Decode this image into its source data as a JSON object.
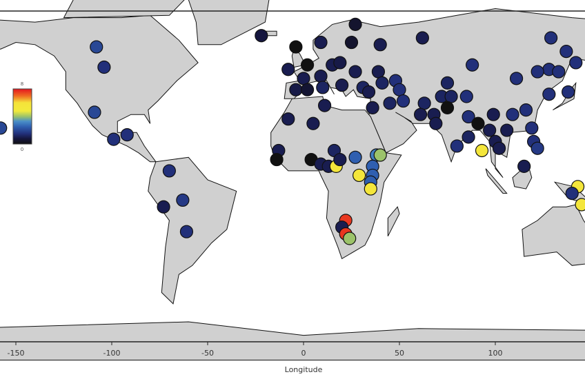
{
  "chart_data": {
    "type": "scatter",
    "basemap": "world land outlines",
    "xlabel": "Longitude",
    "ylabel": "",
    "xlim": [
      -158,
      147
    ],
    "ylim": [
      -72,
      75
    ],
    "xticks": [
      -150,
      -100,
      -50,
      0,
      50,
      100
    ],
    "xtick_labels": [
      "-150",
      "-100",
      "-50",
      "0",
      "50",
      "100"
    ],
    "colorbar": {
      "min": 0,
      "max": 8,
      "min_label": "0",
      "max_label": "8",
      "placement": "left",
      "stops": [
        {
          "v": 0,
          "color": "#111111"
        },
        {
          "v": 0.8,
          "color": "#15163f"
        },
        {
          "v": 1.5,
          "color": "#22307a"
        },
        {
          "v": 2.5,
          "color": "#2f5fb0"
        },
        {
          "v": 3.3,
          "color": "#4a8fc8"
        },
        {
          "v": 4.0,
          "color": "#9cc36a"
        },
        {
          "v": 4.8,
          "color": "#f2ea3c"
        },
        {
          "v": 6.0,
          "color": "#f5e33a"
        },
        {
          "v": 7.0,
          "color": "#ef6a22"
        },
        {
          "v": 8,
          "color": "#e3151f"
        }
      ]
    },
    "land_color": "#d0d0d0",
    "points": [
      {
        "lon": -108,
        "lat": 59,
        "v": 2
      },
      {
        "lon": -104,
        "lat": 50,
        "v": 1.5
      },
      {
        "lon": -109,
        "lat": 30,
        "v": 2
      },
      {
        "lon": -99,
        "lat": 18,
        "v": 1.5
      },
      {
        "lon": -92,
        "lat": 20,
        "v": 1.5
      },
      {
        "lon": -158,
        "lat": 23,
        "v": 2
      },
      {
        "lon": -70,
        "lat": 4,
        "v": 1.5
      },
      {
        "lon": -63,
        "lat": -9,
        "v": 1.7
      },
      {
        "lon": -73,
        "lat": -12,
        "v": 1
      },
      {
        "lon": -61,
        "lat": -23,
        "v": 1.5
      },
      {
        "lon": -22,
        "lat": 64,
        "v": 0.8
      },
      {
        "lon": -4,
        "lat": 59,
        "v": 0
      },
      {
        "lon": -8,
        "lat": 49,
        "v": 1
      },
      {
        "lon": 2,
        "lat": 51,
        "v": 0
      },
      {
        "lon": 0,
        "lat": 45,
        "v": 1
      },
      {
        "lon": 9,
        "lat": 46,
        "v": 1
      },
      {
        "lon": 15,
        "lat": 51,
        "v": 1
      },
      {
        "lon": 19,
        "lat": 52,
        "v": 0.9
      },
      {
        "lon": 10,
        "lat": 41,
        "v": 1.2
      },
      {
        "lon": -4,
        "lat": 40,
        "v": 0.9
      },
      {
        "lon": 2,
        "lat": 40,
        "v": 0.6
      },
      {
        "lon": 27,
        "lat": 69,
        "v": 0.5
      },
      {
        "lon": 25,
        "lat": 61,
        "v": 0.5
      },
      {
        "lon": 9,
        "lat": 61,
        "v": 1
      },
      {
        "lon": 20,
        "lat": 42,
        "v": 1
      },
      {
        "lon": 27,
        "lat": 48,
        "v": 1
      },
      {
        "lon": 31,
        "lat": 41,
        "v": 1.2
      },
      {
        "lon": 39,
        "lat": 48,
        "v": 1
      },
      {
        "lon": 40,
        "lat": 60,
        "v": 1
      },
      {
        "lon": 34,
        "lat": 39,
        "v": 1
      },
      {
        "lon": 48,
        "lat": 44,
        "v": 1.5
      },
      {
        "lon": 50,
        "lat": 40,
        "v": 1.5
      },
      {
        "lon": 41,
        "lat": 43,
        "v": 1.2
      },
      {
        "lon": 45,
        "lat": 34,
        "v": 1.2
      },
      {
        "lon": 36,
        "lat": 32,
        "v": 1
      },
      {
        "lon": 52,
        "lat": 35,
        "v": 1.5
      },
      {
        "lon": 62,
        "lat": 63,
        "v": 1
      },
      {
        "lon": 88,
        "lat": 51,
        "v": 1.5
      },
      {
        "lon": 129,
        "lat": 63,
        "v": 1.5
      },
      {
        "lon": 137,
        "lat": 57,
        "v": 1.5
      },
      {
        "lon": 142,
        "lat": 52,
        "v": 1.5
      },
      {
        "lon": 128,
        "lat": 49,
        "v": 1.5
      },
      {
        "lon": 122,
        "lat": 48,
        "v": 1.5
      },
      {
        "lon": 133,
        "lat": 48,
        "v": 1.5
      },
      {
        "lon": 111,
        "lat": 45,
        "v": 1.5
      },
      {
        "lon": 75,
        "lat": 43,
        "v": 1.2
      },
      {
        "lon": 72,
        "lat": 37,
        "v": 1.2
      },
      {
        "lon": 77,
        "lat": 37,
        "v": 1.2
      },
      {
        "lon": 85,
        "lat": 37,
        "v": 1.5
      },
      {
        "lon": 63,
        "lat": 34,
        "v": 1.2
      },
      {
        "lon": 61,
        "lat": 29,
        "v": 1
      },
      {
        "lon": 68,
        "lat": 29,
        "v": 1
      },
      {
        "lon": 69,
        "lat": 25,
        "v": 1
      },
      {
        "lon": 75,
        "lat": 32,
        "v": 0
      },
      {
        "lon": 86,
        "lat": 28,
        "v": 1.5
      },
      {
        "lon": 91,
        "lat": 25,
        "v": 0
      },
      {
        "lon": 99,
        "lat": 29,
        "v": 1
      },
      {
        "lon": 109,
        "lat": 29,
        "v": 1.5
      },
      {
        "lon": 116,
        "lat": 31,
        "v": 1.5
      },
      {
        "lon": 128,
        "lat": 38,
        "v": 1.5
      },
      {
        "lon": 138,
        "lat": 39,
        "v": 1.5
      },
      {
        "lon": 119,
        "lat": 23,
        "v": 1.5
      },
      {
        "lon": 120,
        "lat": 17,
        "v": 1.5
      },
      {
        "lon": 106,
        "lat": 22,
        "v": 1
      },
      {
        "lon": 97,
        "lat": 22,
        "v": 1
      },
      {
        "lon": 100,
        "lat": 17,
        "v": 1
      },
      {
        "lon": 80,
        "lat": 15,
        "v": 1.5
      },
      {
        "lon": 86,
        "lat": 19,
        "v": 1.2
      },
      {
        "lon": 93,
        "lat": 13,
        "v": 5.5
      },
      {
        "lon": 102,
        "lat": 14,
        "v": 1
      },
      {
        "lon": 115,
        "lat": 6,
        "v": 1
      },
      {
        "lon": 122,
        "lat": 14,
        "v": 1.7
      },
      {
        "lon": 143,
        "lat": -3,
        "v": 5.5
      },
      {
        "lon": 145,
        "lat": -11,
        "v": 5.5
      },
      {
        "lon": 140,
        "lat": -6,
        "v": 1.5
      },
      {
        "lon": -8,
        "lat": 27,
        "v": 1
      },
      {
        "lon": 5,
        "lat": 25,
        "v": 1
      },
      {
        "lon": 11,
        "lat": 33,
        "v": 1
      },
      {
        "lon": -13,
        "lat": 13,
        "v": 1
      },
      {
        "lon": -14,
        "lat": 9,
        "v": 0
      },
      {
        "lon": 4,
        "lat": 9,
        "v": 0
      },
      {
        "lon": 9,
        "lat": 7,
        "v": 1
      },
      {
        "lon": 13,
        "lat": 6,
        "v": 1
      },
      {
        "lon": 16,
        "lat": 13,
        "v": 1.2
      },
      {
        "lon": 17,
        "lat": 6,
        "v": 5.5
      },
      {
        "lon": 19,
        "lat": 9,
        "v": 1
      },
      {
        "lon": 27,
        "lat": 10,
        "v": 2.5
      },
      {
        "lon": 38,
        "lat": 11,
        "v": 3
      },
      {
        "lon": 40,
        "lat": 11,
        "v": 4
      },
      {
        "lon": 36,
        "lat": 6,
        "v": 2.5
      },
      {
        "lon": 36,
        "lat": 2,
        "v": 2.5
      },
      {
        "lon": 29,
        "lat": 2,
        "v": 5.5
      },
      {
        "lon": 35,
        "lat": -1,
        "v": 2.5
      },
      {
        "lon": 35,
        "lat": -4,
        "v": 5.5
      },
      {
        "lon": 22,
        "lat": -18,
        "v": 7.6
      },
      {
        "lon": 20,
        "lat": -21,
        "v": 1
      },
      {
        "lon": 22,
        "lat": -24,
        "v": 7.6
      },
      {
        "lon": 24,
        "lat": -26,
        "v": 4
      }
    ]
  }
}
